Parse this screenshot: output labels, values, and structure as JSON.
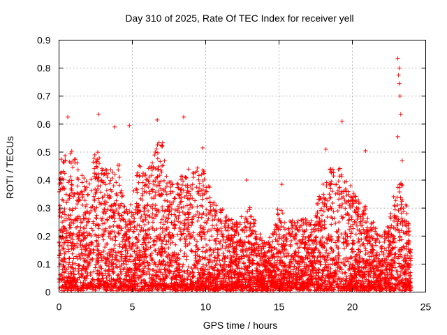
{
  "chart_data": {
    "type": "scatter",
    "title": "Day 310 of 2025, Rate Of TEC Index for receiver yell",
    "xlabel": "GPS time / hours",
    "ylabel": "ROTI / TECUs",
    "xlim": [
      0,
      25
    ],
    "ylim": [
      0,
      0.9
    ],
    "xticks": [
      0,
      5,
      10,
      15,
      20,
      25
    ],
    "yticks": [
      0,
      0.1,
      0.2,
      0.3,
      0.4,
      0.5,
      0.6,
      0.7,
      0.8,
      0.9
    ],
    "xtick_labels": [
      "0",
      "5",
      "10",
      "15",
      "20",
      "25"
    ],
    "ytick_labels": [
      "0",
      "0.1",
      "0.2",
      "0.3",
      "0.4",
      "0.5",
      "0.6",
      "0.7",
      "0.8",
      "0.9"
    ],
    "grid": true,
    "marker": "+",
    "color": "#ff0000",
    "highlighted_points": [
      {
        "x": 0.6,
        "y": 0.625
      },
      {
        "x": 2.7,
        "y": 0.635
      },
      {
        "x": 3.8,
        "y": 0.59
      },
      {
        "x": 4.8,
        "y": 0.595
      },
      {
        "x": 6.7,
        "y": 0.615
      },
      {
        "x": 8.5,
        "y": 0.625
      },
      {
        "x": 9.8,
        "y": 0.515
      },
      {
        "x": 12.8,
        "y": 0.4
      },
      {
        "x": 15.2,
        "y": 0.385
      },
      {
        "x": 18.2,
        "y": 0.51
      },
      {
        "x": 19.3,
        "y": 0.61
      },
      {
        "x": 20.9,
        "y": 0.505
      },
      {
        "x": 23.1,
        "y": 0.835
      },
      {
        "x": 23.2,
        "y": 0.8
      },
      {
        "x": 23.15,
        "y": 0.775
      },
      {
        "x": 23.2,
        "y": 0.745
      },
      {
        "x": 23.25,
        "y": 0.7
      },
      {
        "x": 23.3,
        "y": 0.635
      },
      {
        "x": 23.1,
        "y": 0.555
      },
      {
        "x": 23.4,
        "y": 0.47
      }
    ],
    "envelope": [
      {
        "x": 0.0,
        "y": 0.45
      },
      {
        "x": 0.5,
        "y": 0.5
      },
      {
        "x": 1.0,
        "y": 0.5
      },
      {
        "x": 1.5,
        "y": 0.42
      },
      {
        "x": 2.0,
        "y": 0.38
      },
      {
        "x": 2.5,
        "y": 0.5
      },
      {
        "x": 3.0,
        "y": 0.45
      },
      {
        "x": 3.5,
        "y": 0.42
      },
      {
        "x": 4.0,
        "y": 0.48
      },
      {
        "x": 4.5,
        "y": 0.3
      },
      {
        "x": 5.0,
        "y": 0.33
      },
      {
        "x": 5.5,
        "y": 0.45
      },
      {
        "x": 6.0,
        "y": 0.42
      },
      {
        "x": 6.5,
        "y": 0.5
      },
      {
        "x": 7.0,
        "y": 0.55
      },
      {
        "x": 7.5,
        "y": 0.4
      },
      {
        "x": 8.0,
        "y": 0.38
      },
      {
        "x": 8.5,
        "y": 0.42
      },
      {
        "x": 9.0,
        "y": 0.42
      },
      {
        "x": 9.5,
        "y": 0.45
      },
      {
        "x": 10.0,
        "y": 0.42
      },
      {
        "x": 10.5,
        "y": 0.33
      },
      {
        "x": 11.0,
        "y": 0.3
      },
      {
        "x": 11.5,
        "y": 0.26
      },
      {
        "x": 12.0,
        "y": 0.23
      },
      {
        "x": 12.5,
        "y": 0.26
      },
      {
        "x": 13.0,
        "y": 0.3
      },
      {
        "x": 13.5,
        "y": 0.22
      },
      {
        "x": 14.0,
        "y": 0.16
      },
      {
        "x": 14.5,
        "y": 0.19
      },
      {
        "x": 15.0,
        "y": 0.32
      },
      {
        "x": 15.5,
        "y": 0.22
      },
      {
        "x": 16.0,
        "y": 0.26
      },
      {
        "x": 16.5,
        "y": 0.27
      },
      {
        "x": 17.0,
        "y": 0.24
      },
      {
        "x": 17.5,
        "y": 0.28
      },
      {
        "x": 18.0,
        "y": 0.4
      },
      {
        "x": 18.5,
        "y": 0.44
      },
      {
        "x": 19.0,
        "y": 0.45
      },
      {
        "x": 19.5,
        "y": 0.4
      },
      {
        "x": 20.0,
        "y": 0.35
      },
      {
        "x": 20.5,
        "y": 0.33
      },
      {
        "x": 21.0,
        "y": 0.3
      },
      {
        "x": 21.5,
        "y": 0.22
      },
      {
        "x": 22.0,
        "y": 0.2
      },
      {
        "x": 22.5,
        "y": 0.24
      },
      {
        "x": 23.0,
        "y": 0.4
      },
      {
        "x": 23.5,
        "y": 0.38
      },
      {
        "x": 24.0,
        "y": 0.2
      }
    ]
  }
}
